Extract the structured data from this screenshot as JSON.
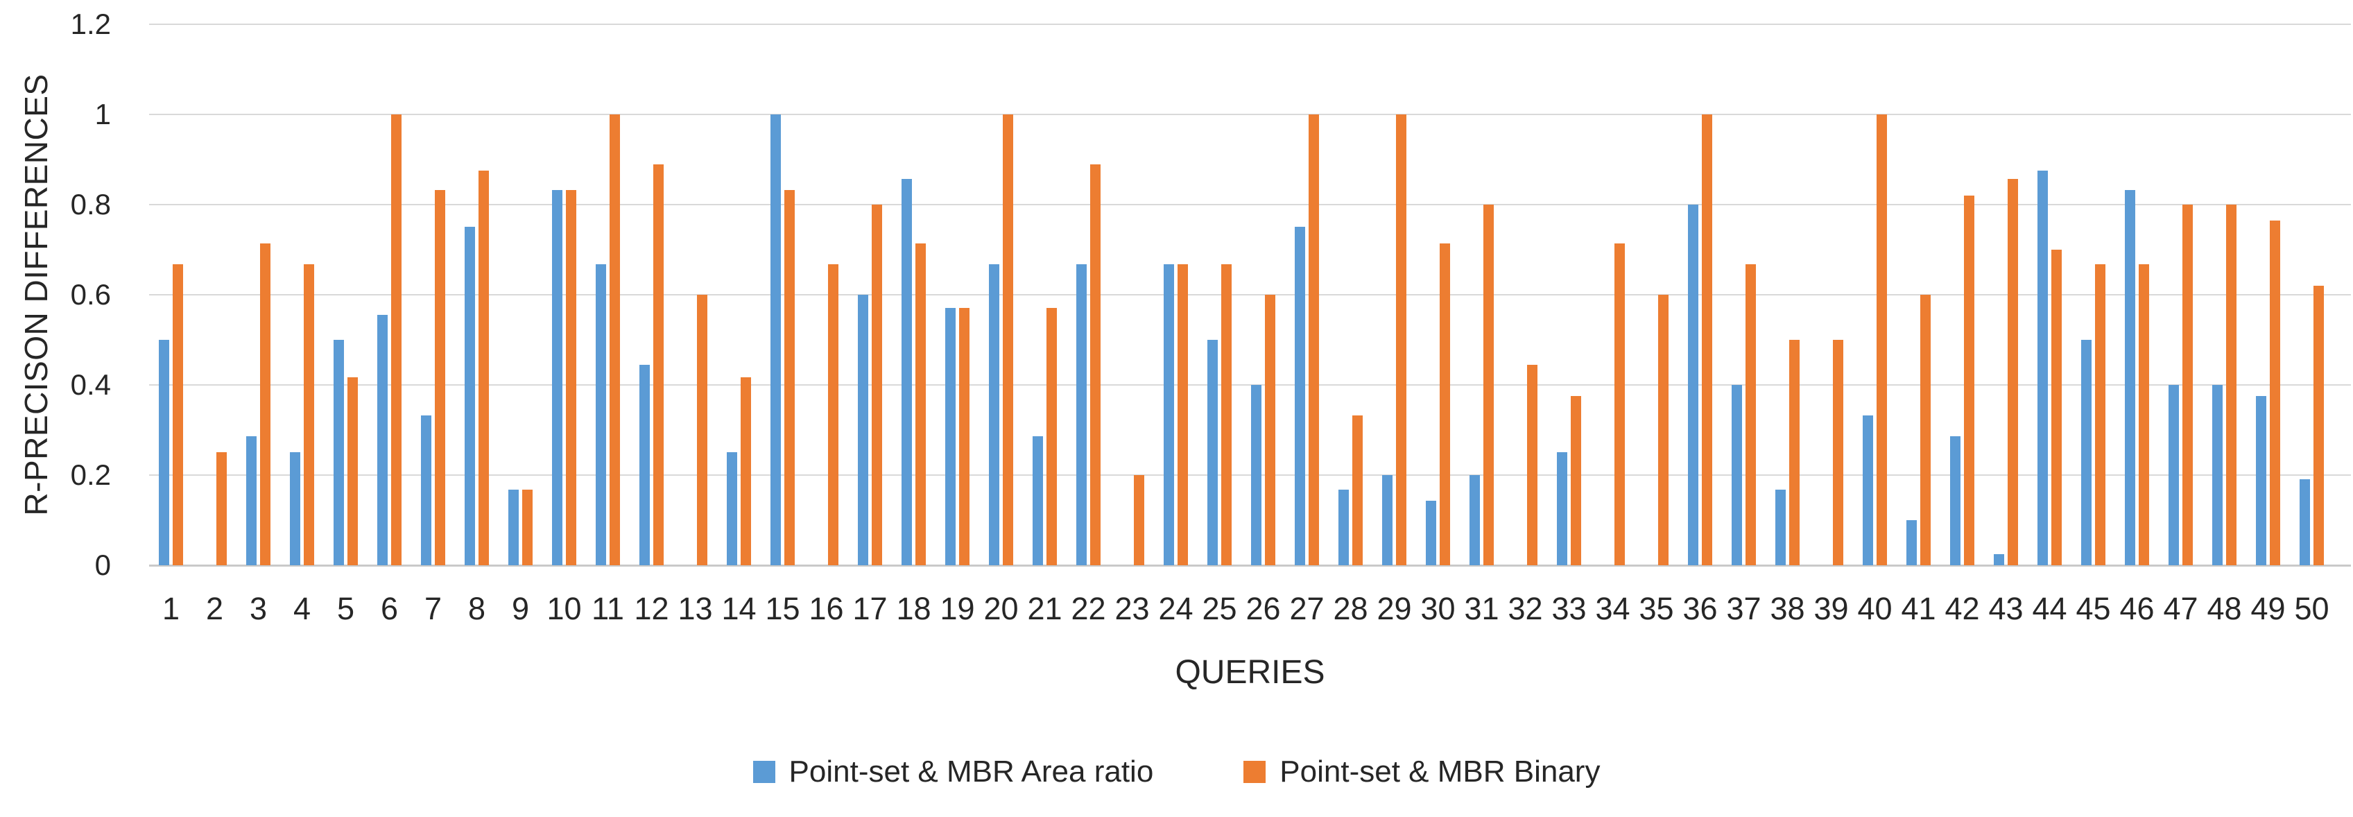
{
  "chart_data": {
    "type": "bar",
    "title": "",
    "xlabel": "QUERIES",
    "ylabel": "R-PRECISON DIFFERENCES",
    "ylim": [
      0,
      1.2
    ],
    "yticks": [
      0,
      0.2,
      0.4,
      0.6,
      0.8,
      1,
      1.2
    ],
    "grid": true,
    "legend_position": "bottom",
    "categories": [
      1,
      2,
      3,
      4,
      5,
      6,
      7,
      8,
      9,
      10,
      11,
      12,
      13,
      14,
      15,
      16,
      17,
      18,
      19,
      20,
      21,
      22,
      23,
      24,
      25,
      26,
      27,
      28,
      29,
      30,
      31,
      32,
      33,
      34,
      35,
      36,
      37,
      38,
      39,
      40,
      41,
      42,
      43,
      44,
      45,
      46,
      47,
      48,
      49,
      50
    ],
    "series": [
      {
        "name": "Point-set & MBR Area ratio",
        "color": "#5B9BD5",
        "values": [
          0.5,
          0,
          0.286,
          0.25,
          0.5,
          0.556,
          0.333,
          0.75,
          0.167,
          0.833,
          0.667,
          0.444,
          0,
          0.25,
          1,
          0,
          0.6,
          0.857,
          0.571,
          0.667,
          0.286,
          0.667,
          0,
          0.667,
          0.5,
          0.4,
          0.75,
          0.167,
          0.2,
          0.143,
          0.2,
          0,
          0.25,
          0,
          0,
          0.8,
          0.4,
          0.167,
          0,
          0.333,
          0.1,
          0.286,
          0.025,
          0.875,
          0.5,
          0.833,
          0.4,
          0.4,
          0.375,
          0.19
        ]
      },
      {
        "name": "Point-set & MBR Binary",
        "color": "#ED7D31",
        "values": [
          0.667,
          0.25,
          0.714,
          0.667,
          0.417,
          1,
          0.833,
          0.875,
          0.167,
          0.833,
          1,
          0.889,
          0.6,
          0.417,
          0.833,
          0.667,
          0.8,
          0.714,
          0.571,
          1,
          0.571,
          0.889,
          0.2,
          0.667,
          0.667,
          0.6,
          1,
          0.333,
          1,
          0.714,
          0.8,
          0.444,
          0.375,
          0.714,
          0.6,
          1,
          0.667,
          0.5,
          0.5,
          1,
          0.6,
          0.82,
          0.857,
          0.7,
          0.667,
          0.667,
          0.8,
          0.8,
          0.765,
          0.62
        ]
      }
    ]
  },
  "colors": {
    "axis_text": "#262626",
    "gridline": "#d9d9d9",
    "baseline": "#c9c9c9",
    "background": "#ffffff"
  }
}
